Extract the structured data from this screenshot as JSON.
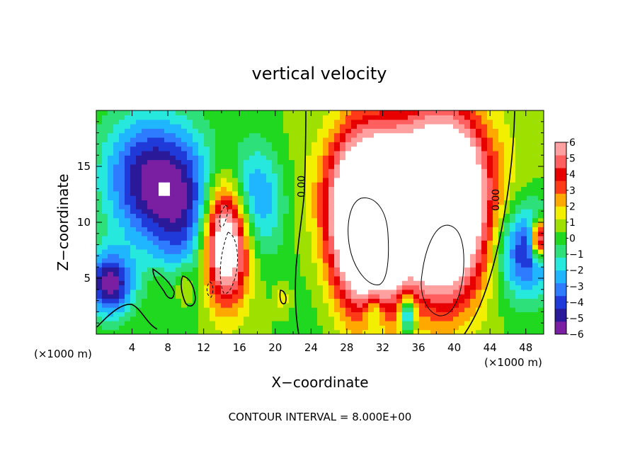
{
  "chart_data": {
    "type": "heatmap",
    "title": "vertical velocity",
    "xlabel": "X−coordinate",
    "ylabel": "Z−coordinate",
    "x_unit_label": "(×1000 m)",
    "x_unit_label_right": "(×1000 m)",
    "footer": "CONTOUR INTERVAL = 8.000E+00",
    "xlim": [
      0,
      50
    ],
    "ylim": [
      0,
      20
    ],
    "x_ticks": [
      4,
      8,
      12,
      16,
      20,
      24,
      28,
      32,
      36,
      40,
      44,
      48
    ],
    "y_ticks": [
      5,
      10,
      15
    ],
    "colorbar": {
      "min": -6,
      "max": 6,
      "ticks": [
        "6",
        "5",
        "4",
        "3",
        "2",
        "1",
        "0",
        "−1",
        "−2",
        "−3",
        "−4",
        "−5",
        "−6"
      ],
      "colors": [
        "#7a1fa2",
        "#2a1a9a",
        "#1f3ad8",
        "#2e7bff",
        "#20b6ff",
        "#27e8dc",
        "#2ee07a",
        "#20d820",
        "#9ee000",
        "#f2f000",
        "#ffa800",
        "#ff3a18",
        "#e80000",
        "#ff5f5f",
        "#ffa0a0"
      ]
    },
    "contour_labels": [
      {
        "text": "0.00",
        "x": 23.3,
        "y": 13.2
      },
      {
        "text": "0.00",
        "x": 45.0,
        "y": 12.0
      }
    ],
    "features": [
      {
        "x": 5.5,
        "y": 14.0,
        "value": -5,
        "sx": 3.5,
        "sy": 4.0
      },
      {
        "x": 1.5,
        "y": 4.5,
        "value": -6,
        "sx": 1.8,
        "sy": 2.0
      },
      {
        "x": 10.0,
        "y": 11.0,
        "value": -4,
        "sx": 3.0,
        "sy": 4.5
      },
      {
        "x": 14.5,
        "y": 8.5,
        "value": 10,
        "sx": 1.8,
        "sy": 3.8
      },
      {
        "x": 17.5,
        "y": 12.0,
        "value": -4,
        "sx": 2.5,
        "sy": 3.5
      },
      {
        "x": 9.8,
        "y": 4.5,
        "value": 2,
        "sx": 0.7,
        "sy": 1.3
      },
      {
        "x": 7.0,
        "y": 4.5,
        "value": 1,
        "sx": 0.9,
        "sy": 0.9
      },
      {
        "x": 30.5,
        "y": 9.5,
        "value": 12,
        "sx": 3.0,
        "sy": 5.0
      },
      {
        "x": 39.0,
        "y": 11.0,
        "value": 11,
        "sx": 3.0,
        "sy": 5.5
      },
      {
        "x": 34.5,
        "y": 13.5,
        "value": 5,
        "sx": 6.5,
        "sy": 4.5
      },
      {
        "x": 31.0,
        "y": 2.0,
        "value": -3,
        "sx": 0.8,
        "sy": 1.3
      },
      {
        "x": 34.8,
        "y": 1.8,
        "value": -5,
        "sx": 0.6,
        "sy": 1.2
      },
      {
        "x": 48.0,
        "y": 7.5,
        "value": -5,
        "sx": 2.2,
        "sy": 3.0
      },
      {
        "x": 49.5,
        "y": 8.5,
        "value": 8,
        "sx": 0.6,
        "sy": 1.2
      },
      {
        "x": 20.8,
        "y": 3.3,
        "value": 1.5,
        "sx": 0.5,
        "sy": 0.8
      },
      {
        "x": 25.0,
        "y": 10.0,
        "value": -1,
        "sx": 2.0,
        "sy": 8.0
      }
    ]
  }
}
